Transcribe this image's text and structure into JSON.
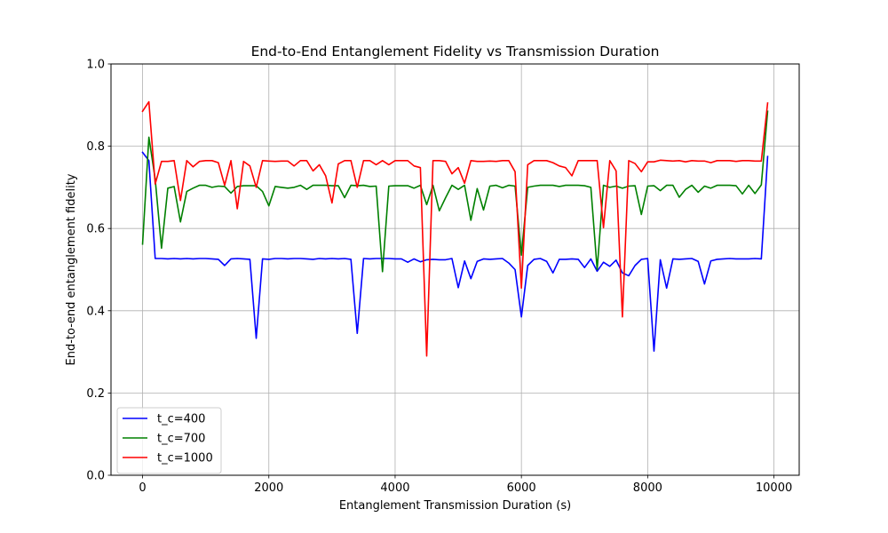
{
  "chart_data": {
    "type": "line",
    "title": "End-to-End Entanglement Fidelity vs Transmission Duration",
    "xlabel": "Entanglement Transmission Duration (s)",
    "ylabel": "End-to-end entanglement fidelity",
    "xlim": [
      -500,
      10400
    ],
    "ylim": [
      0.0,
      1.0
    ],
    "xticks": [
      0,
      2000,
      4000,
      6000,
      8000,
      10000
    ],
    "xtick_labels": [
      "0",
      "2000",
      "4000",
      "6000",
      "8000",
      "10000"
    ],
    "yticks": [
      0.0,
      0.2,
      0.4,
      0.6,
      0.8,
      1.0
    ],
    "ytick_labels": [
      "0.0",
      "0.2",
      "0.4",
      "0.6",
      "0.8",
      "1.0"
    ],
    "grid": true,
    "legend_position": "lower-left",
    "series": [
      {
        "name": "t_c=400",
        "color": "#0000ff",
        "x": [
          0,
          100,
          200,
          300,
          400,
          500,
          600,
          700,
          800,
          900,
          1000,
          1100,
          1200,
          1300,
          1400,
          1500,
          1600,
          1700,
          1800,
          1900,
          2000,
          2100,
          2200,
          2300,
          2400,
          2500,
          2600,
          2700,
          2800,
          2900,
          3000,
          3100,
          3200,
          3300,
          3400,
          3500,
          3600,
          3700,
          3800,
          3900,
          4000,
          4100,
          4200,
          4300,
          4400,
          4500,
          4600,
          4700,
          4800,
          4900,
          5000,
          5100,
          5200,
          5300,
          5400,
          5500,
          5600,
          5700,
          5800,
          5900,
          6000,
          6100,
          6200,
          6300,
          6400,
          6500,
          6600,
          6700,
          6800,
          6900,
          7000,
          7100,
          7200,
          7300,
          7400,
          7500,
          7600,
          7700,
          7800,
          7900,
          8000,
          8100,
          8200,
          8300,
          8400,
          8500,
          8600,
          8700,
          8800,
          8900,
          9000,
          9100,
          9200,
          9300,
          9400,
          9500,
          9600,
          9700,
          9800,
          9900
        ],
        "values": [
          0.785,
          0.765,
          0.527,
          0.527,
          0.526,
          0.527,
          0.526,
          0.527,
          0.526,
          0.527,
          0.527,
          0.526,
          0.525,
          0.51,
          0.526,
          0.527,
          0.526,
          0.525,
          0.333,
          0.526,
          0.525,
          0.527,
          0.527,
          0.526,
          0.527,
          0.527,
          0.526,
          0.525,
          0.527,
          0.526,
          0.527,
          0.526,
          0.527,
          0.525,
          0.345,
          0.527,
          0.526,
          0.527,
          0.527,
          0.527,
          0.526,
          0.526,
          0.518,
          0.526,
          0.519,
          0.524,
          0.525,
          0.524,
          0.524,
          0.527,
          0.456,
          0.521,
          0.478,
          0.52,
          0.526,
          0.525,
          0.526,
          0.527,
          0.516,
          0.5,
          0.385,
          0.51,
          0.525,
          0.527,
          0.52,
          0.492,
          0.525,
          0.525,
          0.526,
          0.525,
          0.505,
          0.526,
          0.496,
          0.518,
          0.508,
          0.523,
          0.492,
          0.485,
          0.51,
          0.525,
          0.527,
          0.302,
          0.524,
          0.455,
          0.526,
          0.525,
          0.526,
          0.527,
          0.52,
          0.465,
          0.521,
          0.525,
          0.526,
          0.527,
          0.526,
          0.526,
          0.526,
          0.527,
          0.526,
          0.775
        ]
      },
      {
        "name": "t_c=700",
        "color": "#008000",
        "x": [
          0,
          100,
          200,
          300,
          400,
          500,
          600,
          700,
          800,
          900,
          1000,
          1100,
          1200,
          1300,
          1400,
          1500,
          1600,
          1700,
          1800,
          1900,
          2000,
          2100,
          2200,
          2300,
          2400,
          2500,
          2600,
          2700,
          2800,
          2900,
          3000,
          3100,
          3200,
          3300,
          3400,
          3500,
          3600,
          3700,
          3800,
          3900,
          4000,
          4100,
          4200,
          4300,
          4400,
          4500,
          4600,
          4700,
          4800,
          4900,
          5000,
          5100,
          5200,
          5300,
          5400,
          5500,
          5600,
          5700,
          5800,
          5900,
          6000,
          6100,
          6200,
          6300,
          6400,
          6500,
          6600,
          6700,
          6800,
          6900,
          7000,
          7100,
          7200,
          7300,
          7400,
          7500,
          7600,
          7700,
          7800,
          7900,
          8000,
          8100,
          8200,
          8300,
          8400,
          8500,
          8600,
          8700,
          8800,
          8900,
          9000,
          9100,
          9200,
          9300,
          9400,
          9500,
          9600,
          9700,
          9800,
          9900
        ],
        "values": [
          0.562,
          0.822,
          0.72,
          0.552,
          0.698,
          0.702,
          0.616,
          0.69,
          0.698,
          0.705,
          0.705,
          0.7,
          0.703,
          0.702,
          0.686,
          0.702,
          0.704,
          0.704,
          0.704,
          0.69,
          0.655,
          0.702,
          0.7,
          0.698,
          0.7,
          0.705,
          0.695,
          0.705,
          0.705,
          0.705,
          0.704,
          0.704,
          0.675,
          0.705,
          0.704,
          0.705,
          0.702,
          0.703,
          0.495,
          0.703,
          0.704,
          0.704,
          0.704,
          0.698,
          0.705,
          0.658,
          0.705,
          0.643,
          0.675,
          0.705,
          0.695,
          0.705,
          0.62,
          0.697,
          0.645,
          0.703,
          0.705,
          0.699,
          0.705,
          0.703,
          0.535,
          0.7,
          0.703,
          0.705,
          0.705,
          0.705,
          0.702,
          0.705,
          0.705,
          0.705,
          0.704,
          0.7,
          0.5,
          0.705,
          0.7,
          0.703,
          0.698,
          0.703,
          0.704,
          0.634,
          0.703,
          0.704,
          0.692,
          0.705,
          0.705,
          0.676,
          0.695,
          0.705,
          0.688,
          0.703,
          0.698,
          0.705,
          0.705,
          0.705,
          0.704,
          0.684,
          0.705,
          0.685,
          0.706,
          0.885
        ]
      },
      {
        "name": "t_c=1000",
        "color": "#ff0000",
        "x": [
          0,
          100,
          200,
          300,
          400,
          500,
          600,
          700,
          800,
          900,
          1000,
          1100,
          1200,
          1300,
          1400,
          1500,
          1600,
          1700,
          1800,
          1900,
          2000,
          2100,
          2200,
          2300,
          2400,
          2500,
          2600,
          2700,
          2800,
          2900,
          3000,
          3100,
          3200,
          3300,
          3400,
          3500,
          3600,
          3700,
          3800,
          3900,
          4000,
          4100,
          4200,
          4300,
          4400,
          4500,
          4600,
          4700,
          4800,
          4900,
          5000,
          5100,
          5200,
          5300,
          5400,
          5500,
          5600,
          5700,
          5800,
          5900,
          6000,
          6100,
          6200,
          6300,
          6400,
          6500,
          6600,
          6700,
          6800,
          6900,
          7000,
          7100,
          7200,
          7300,
          7400,
          7500,
          7600,
          7700,
          7800,
          7900,
          8000,
          8100,
          8200,
          8300,
          8400,
          8500,
          8600,
          8700,
          8800,
          8900,
          9000,
          9100,
          9200,
          9300,
          9400,
          9500,
          9600,
          9700,
          9800,
          9900
        ],
        "values": [
          0.885,
          0.908,
          0.708,
          0.763,
          0.763,
          0.765,
          0.668,
          0.765,
          0.75,
          0.763,
          0.765,
          0.765,
          0.76,
          0.705,
          0.765,
          0.648,
          0.763,
          0.752,
          0.7,
          0.765,
          0.764,
          0.763,
          0.764,
          0.764,
          0.752,
          0.765,
          0.765,
          0.74,
          0.755,
          0.728,
          0.662,
          0.757,
          0.765,
          0.765,
          0.7,
          0.765,
          0.765,
          0.755,
          0.765,
          0.755,
          0.765,
          0.765,
          0.765,
          0.752,
          0.748,
          0.29,
          0.765,
          0.765,
          0.763,
          0.733,
          0.748,
          0.71,
          0.765,
          0.763,
          0.763,
          0.764,
          0.763,
          0.765,
          0.765,
          0.738,
          0.455,
          0.755,
          0.765,
          0.765,
          0.765,
          0.76,
          0.752,
          0.748,
          0.728,
          0.765,
          0.765,
          0.765,
          0.765,
          0.602,
          0.765,
          0.74,
          0.385,
          0.765,
          0.758,
          0.738,
          0.762,
          0.762,
          0.766,
          0.765,
          0.764,
          0.765,
          0.762,
          0.765,
          0.764,
          0.764,
          0.76,
          0.765,
          0.765,
          0.765,
          0.763,
          0.765,
          0.765,
          0.764,
          0.764,
          0.905
        ]
      }
    ]
  }
}
